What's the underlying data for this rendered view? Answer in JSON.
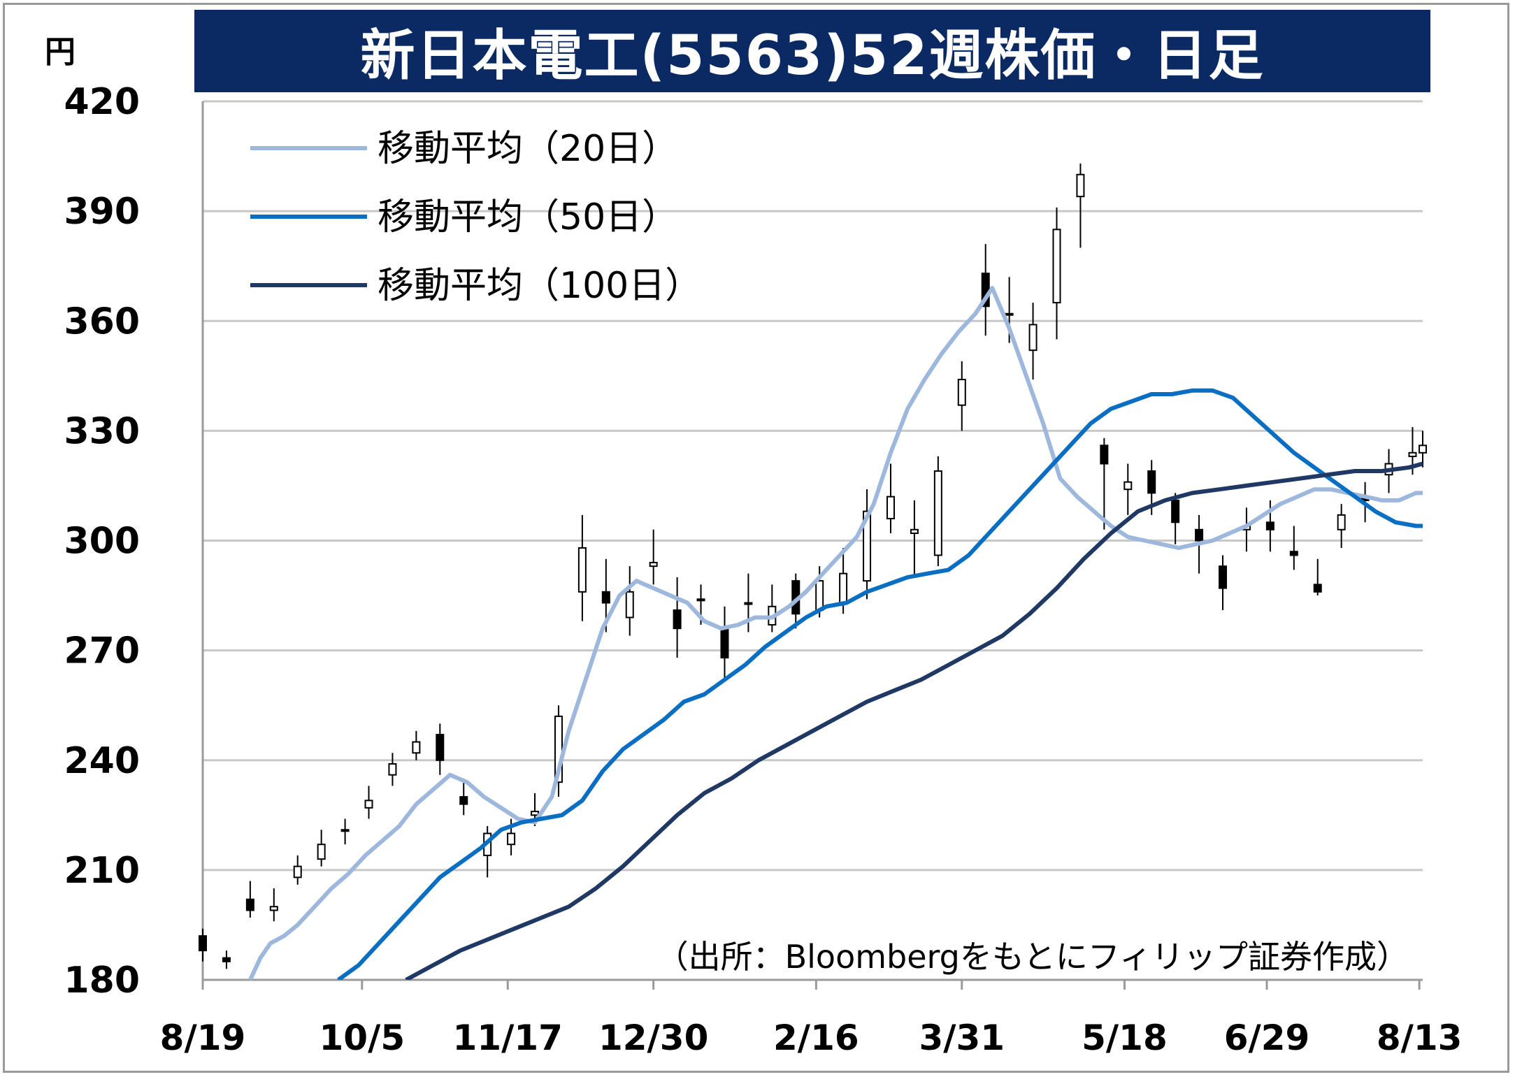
{
  "chart_data": {
    "type": "candlestick",
    "title": "新日本電工(5563)52週株価・日足",
    "ylabel": "円",
    "ylim": [
      180,
      420
    ],
    "yticks": [
      180,
      210,
      240,
      270,
      300,
      330,
      360,
      390,
      420
    ],
    "xlim": [
      0,
      360
    ],
    "xticks": [
      {
        "label": "8/19",
        "x": 0
      },
      {
        "label": "10/5",
        "x": 47
      },
      {
        "label": "11/17",
        "x": 90
      },
      {
        "label": "12/30",
        "x": 133
      },
      {
        "label": "2/16",
        "x": 181
      },
      {
        "label": "3/31",
        "x": 224
      },
      {
        "label": "5/18",
        "x": 272
      },
      {
        "label": "6/29",
        "x": 314
      },
      {
        "label": "8/13",
        "x": 359
      }
    ],
    "grid": true,
    "legend_position": "top-left",
    "source": "（出所：Bloombergをもとにフィリップ証券作成）",
    "candles": {
      "x": [
        0,
        7,
        14,
        21,
        28,
        35,
        42,
        49,
        56,
        63,
        70,
        77,
        84,
        91,
        98,
        105,
        112,
        119,
        126,
        133,
        140,
        147,
        154,
        161,
        168,
        175,
        182,
        189,
        196,
        203,
        210,
        217,
        224,
        231,
        238,
        245,
        252,
        259,
        266,
        273,
        280,
        287,
        294,
        301,
        308,
        315,
        322,
        329,
        336,
        343,
        350,
        357,
        360
      ],
      "open": [
        192,
        186,
        202,
        199,
        208,
        213,
        221,
        227,
        236,
        242,
        247,
        230,
        214,
        217,
        225,
        234,
        286,
        286,
        279,
        293,
        281,
        284,
        276,
        283,
        277,
        289,
        281,
        283,
        289,
        306,
        302,
        296,
        337,
        373,
        362,
        352,
        365,
        394,
        326,
        314,
        319,
        311,
        303,
        293,
        303,
        305,
        297,
        288,
        303,
        312,
        318,
        323,
        324
      ],
      "close": [
        188,
        185,
        199,
        200,
        211,
        217,
        221,
        229,
        239,
        245,
        240,
        228,
        220,
        220,
        226,
        252,
        298,
        283,
        286,
        294,
        276,
        284,
        268,
        283,
        282,
        280,
        289,
        291,
        308,
        312,
        303,
        319,
        344,
        364,
        362,
        359,
        385,
        400,
        321,
        316,
        313,
        305,
        300,
        287,
        304,
        303,
        296,
        286,
        307,
        311,
        321,
        324,
        326
      ],
      "high": [
        194,
        188,
        207,
        205,
        214,
        221,
        224,
        233,
        242,
        248,
        250,
        235,
        222,
        224,
        231,
        255,
        307,
        295,
        293,
        303,
        290,
        288,
        282,
        291,
        288,
        291,
        293,
        298,
        314,
        321,
        311,
        323,
        349,
        381,
        372,
        365,
        391,
        403,
        328,
        321,
        322,
        313,
        307,
        296,
        309,
        311,
        304,
        295,
        310,
        316,
        325,
        331,
        330
      ],
      "low": [
        185,
        183,
        197,
        196,
        206,
        211,
        217,
        224,
        233,
        240,
        236,
        225,
        208,
        214,
        222,
        230,
        278,
        275,
        274,
        288,
        268,
        277,
        262,
        275,
        275,
        276,
        279,
        280,
        284,
        302,
        290,
        293,
        330,
        356,
        354,
        344,
        355,
        380,
        303,
        307,
        307,
        299,
        291,
        281,
        297,
        297,
        292,
        285,
        298,
        305,
        313,
        318,
        320
      ]
    },
    "series": [
      {
        "name": "移動平均（20日）",
        "color": "#9db8dc",
        "x": [
          14,
          17,
          20,
          24,
          28,
          33,
          38,
          43,
          48,
          53,
          58,
          63,
          68,
          73,
          78,
          83,
          88,
          93,
          98,
          103,
          108,
          113,
          118,
          123,
          128,
          133,
          138,
          143,
          148,
          153,
          158,
          163,
          168,
          173,
          178,
          183,
          188,
          193,
          198,
          203,
          208,
          213,
          218,
          223,
          228,
          233,
          238,
          243,
          248,
          253,
          258,
          263,
          268,
          273,
          278,
          283,
          288,
          293,
          298,
          303,
          308,
          313,
          318,
          323,
          328,
          333,
          338,
          343,
          348,
          353,
          358,
          360
        ],
        "values": [
          180,
          186,
          190,
          192,
          195,
          200,
          205,
          209,
          214,
          218,
          222,
          228,
          232,
          236,
          234,
          230,
          227,
          224,
          223,
          230,
          248,
          262,
          276,
          285,
          289,
          287,
          285,
          283,
          278,
          276,
          277,
          279,
          279,
          282,
          286,
          291,
          296,
          301,
          310,
          324,
          336,
          344,
          351,
          357,
          362,
          369,
          358,
          345,
          332,
          317,
          312,
          308,
          304,
          301,
          300,
          299,
          298,
          299,
          300,
          302,
          304,
          307,
          310,
          312,
          314,
          314,
          313,
          312,
          311,
          311,
          313,
          313
        ],
        "note": ""
      },
      {
        "name": "移動平均（50日）",
        "color": "#0a6fc2",
        "x": [
          40,
          46,
          52,
          58,
          64,
          70,
          76,
          82,
          88,
          94,
          100,
          106,
          112,
          118,
          124,
          130,
          136,
          142,
          148,
          154,
          160,
          166,
          172,
          178,
          184,
          190,
          196,
          202,
          208,
          214,
          220,
          226,
          232,
          238,
          244,
          250,
          256,
          262,
          268,
          274,
          280,
          286,
          292,
          298,
          304,
          310,
          316,
          322,
          328,
          334,
          340,
          346,
          352,
          358,
          360
        ],
        "values": [
          180,
          184,
          190,
          196,
          202,
          208,
          212,
          216,
          221,
          223,
          224,
          225,
          229,
          237,
          243,
          247,
          251,
          256,
          258,
          262,
          266,
          271,
          275,
          279,
          282,
          283,
          286,
          288,
          290,
          291,
          292,
          296,
          302,
          308,
          314,
          320,
          326,
          332,
          336,
          338,
          340,
          340,
          341,
          341,
          339,
          334,
          329,
          324,
          320,
          316,
          312,
          308,
          305,
          304,
          304
        ]
      },
      {
        "name": "移動平均（100日）",
        "color": "#1f3864",
        "x": [
          60,
          68,
          76,
          84,
          92,
          100,
          108,
          116,
          124,
          132,
          140,
          148,
          156,
          164,
          172,
          180,
          188,
          196,
          204,
          212,
          220,
          228,
          236,
          244,
          252,
          260,
          268,
          276,
          284,
          292,
          300,
          308,
          316,
          324,
          332,
          340,
          348,
          356,
          360
        ],
        "values": [
          180,
          184,
          188,
          191,
          194,
          197,
          200,
          205,
          211,
          218,
          225,
          231,
          235,
          240,
          244,
          248,
          252,
          256,
          259,
          262,
          266,
          270,
          274,
          280,
          287,
          295,
          302,
          308,
          311,
          313,
          314,
          315,
          316,
          317,
          318,
          319,
          319,
          320,
          321
        ]
      }
    ]
  }
}
